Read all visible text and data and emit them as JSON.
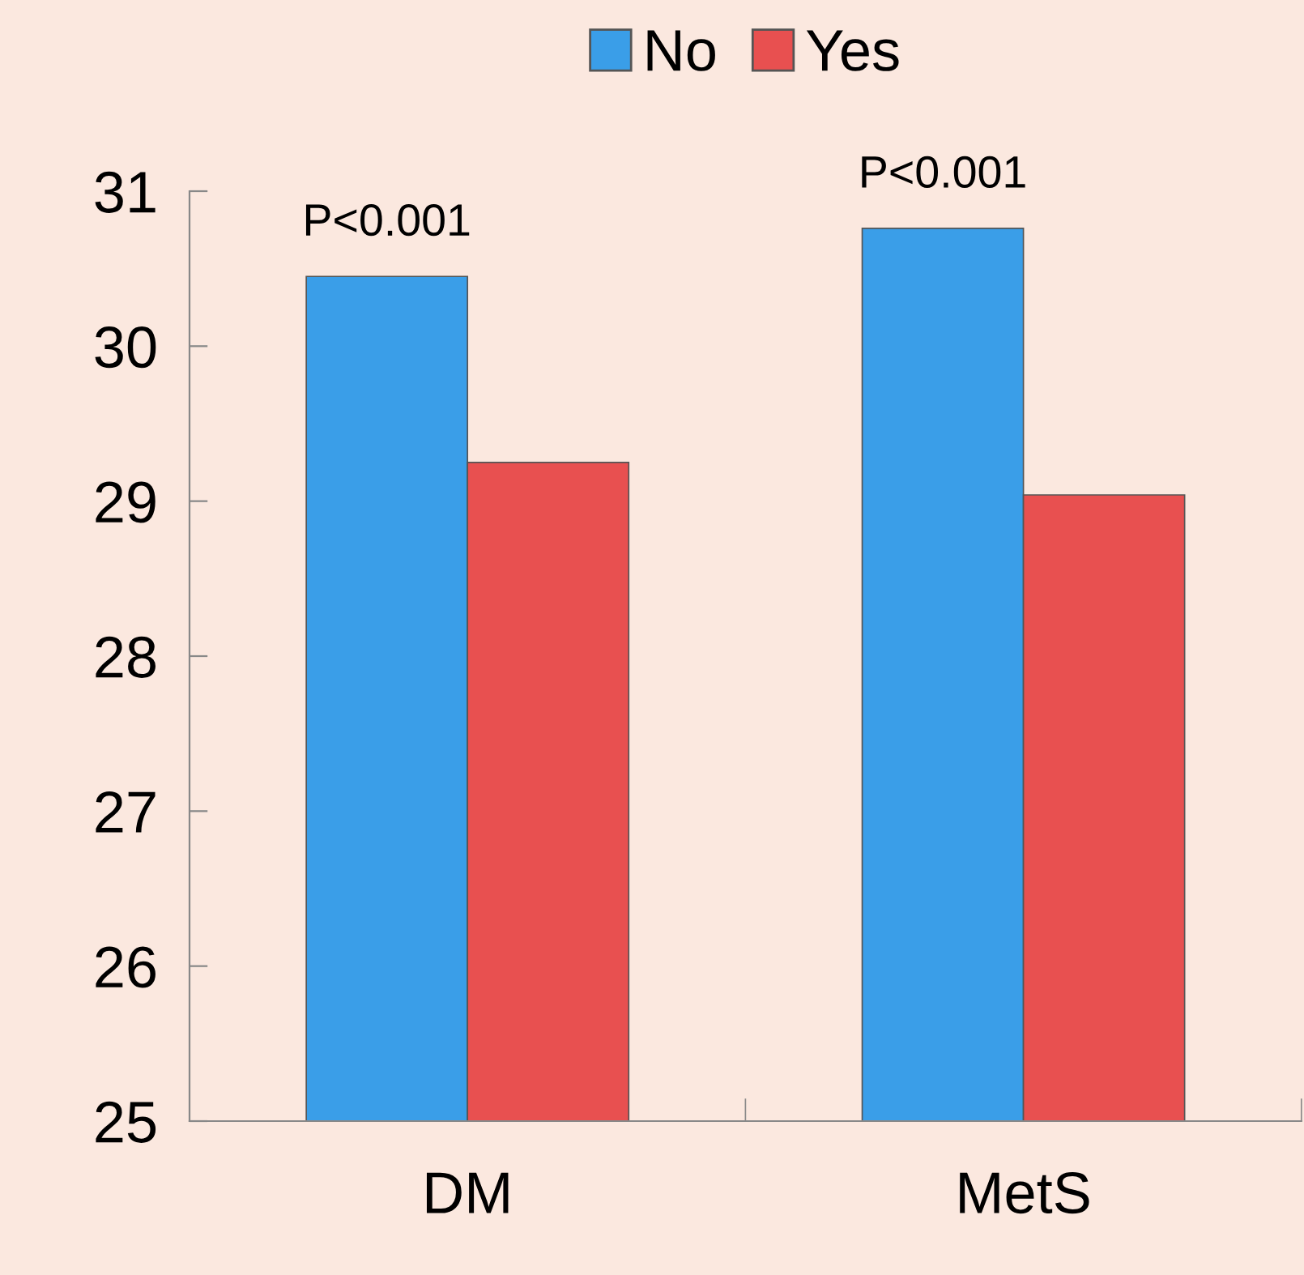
{
  "chart_data": {
    "type": "bar",
    "categories": [
      "DM",
      "MetS"
    ],
    "series": [
      {
        "name": "No",
        "color": "#3a9ee8",
        "values": [
          30.45,
          30.76
        ]
      },
      {
        "name": "Yes",
        "color": "#e85050",
        "values": [
          29.25,
          29.04
        ]
      }
    ],
    "ylim": [
      25,
      31
    ],
    "yticks": [
      25,
      26,
      27,
      28,
      29,
      30,
      31
    ],
    "annotations": [
      "P<0.001",
      "P<0.001"
    ],
    "legend": "top",
    "grid": false
  }
}
